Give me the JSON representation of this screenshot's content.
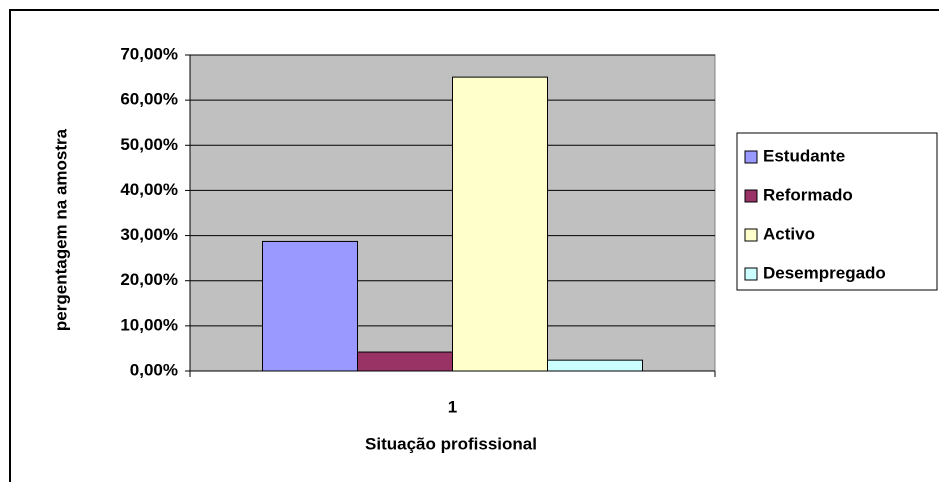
{
  "chart_data": {
    "type": "bar",
    "categories": [
      "1"
    ],
    "x_label": "Situação profissional",
    "y_label": "pergentagem na amostra",
    "series": [
      {
        "name": "Estudante",
        "color": "#9999ff",
        "values": [
          28.7
        ]
      },
      {
        "name": "Reformado",
        "color": "#993366",
        "values": [
          4.2
        ]
      },
      {
        "name": "Activo",
        "color": "#ffffcc",
        "values": [
          65.1
        ]
      },
      {
        "name": "Desempregado",
        "color": "#ccffff",
        "values": [
          2.4
        ]
      }
    ],
    "ylim": [
      0,
      70
    ],
    "yticks": [
      {
        "value": 0,
        "label": "0,00%"
      },
      {
        "value": 10,
        "label": "10,00%"
      },
      {
        "value": 20,
        "label": "20,00%"
      },
      {
        "value": 30,
        "label": "30,00%"
      },
      {
        "value": 40,
        "label": "40,00%"
      },
      {
        "value": 50,
        "label": "50,00%"
      },
      {
        "value": 60,
        "label": "60,00%"
      },
      {
        "value": 70,
        "label": "70,00%"
      }
    ],
    "grid": true,
    "legend": "right",
    "plot_background": "#c0c0c0"
  }
}
